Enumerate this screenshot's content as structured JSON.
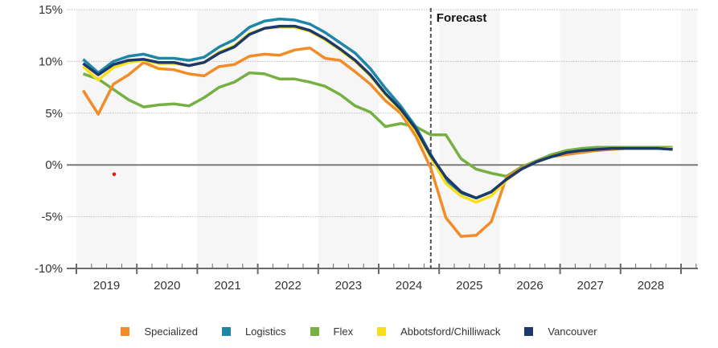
{
  "chart_data": {
    "type": "line",
    "title": "",
    "xlabel": "",
    "ylabel": "",
    "ylim": [
      -10,
      15
    ],
    "yticks": [
      "15%",
      "10%",
      "5%",
      "0%",
      "-5%",
      "-10%"
    ],
    "ytick_values": [
      15,
      10,
      5,
      0,
      -5,
      -10
    ],
    "years": [
      "2019",
      "2020",
      "2021",
      "2022",
      "2023",
      "2024",
      "2025",
      "2026",
      "2027",
      "2028"
    ],
    "frequency": "quarterly",
    "forecast_label": "Forecast",
    "forecast_start": "2024 Q4",
    "grid": true,
    "legend_position": "bottom",
    "series": [
      {
        "name": "Specialized",
        "color": "#F28C28",
        "values": [
          7.2,
          4.9,
          7.8,
          8.7,
          9.9,
          9.3,
          9.2,
          8.8,
          8.6,
          9.5,
          9.7,
          10.5,
          10.7,
          10.6,
          11.1,
          11.3,
          10.3,
          10.1,
          9.0,
          7.8,
          6.2,
          5.0,
          2.8,
          -0.3,
          -5.1,
          -6.9,
          -6.8,
          -5.5,
          -1.2,
          -0.3,
          0.3,
          0.8,
          1.0,
          1.2,
          1.4,
          1.5,
          1.6,
          1.6,
          1.6,
          1.6
        ]
      },
      {
        "name": "Logistics",
        "color": "#1F86A8",
        "values": [
          10.2,
          8.9,
          10.0,
          10.5,
          10.7,
          10.3,
          10.3,
          10.1,
          10.4,
          11.4,
          12.1,
          13.3,
          13.9,
          14.1,
          14.0,
          13.6,
          12.8,
          11.8,
          10.8,
          9.3,
          7.4,
          5.7,
          3.7,
          1.0,
          -1.5,
          -2.7,
          -3.2,
          -2.6,
          -1.4,
          -0.4,
          0.3,
          0.8,
          1.2,
          1.4,
          1.5,
          1.6,
          1.6,
          1.6,
          1.6,
          1.6
        ]
      },
      {
        "name": "Flex",
        "color": "#76B043",
        "values": [
          8.8,
          8.3,
          7.3,
          6.3,
          5.6,
          5.8,
          5.9,
          5.7,
          6.5,
          7.5,
          8.0,
          8.9,
          8.8,
          8.3,
          8.3,
          8.0,
          7.6,
          6.8,
          5.7,
          5.1,
          3.7,
          4.0,
          3.7,
          2.9,
          2.9,
          0.6,
          -0.4,
          -0.8,
          -1.1,
          -0.2,
          0.4,
          1.0,
          1.4,
          1.6,
          1.7,
          1.7,
          1.7,
          1.7,
          1.7,
          1.7
        ]
      },
      {
        "name": "Abbotsford/Chilliwack",
        "color": "#F7E01A",
        "values": [
          9.5,
          8.2,
          9.4,
          9.9,
          10.1,
          9.8,
          9.8,
          9.6,
          9.9,
          10.9,
          11.5,
          12.7,
          13.2,
          13.3,
          13.3,
          12.9,
          12.1,
          11.1,
          10.0,
          8.6,
          6.8,
          5.3,
          3.3,
          0.7,
          -1.8,
          -3.0,
          -3.6,
          -3.0,
          -1.5,
          -0.4,
          0.3,
          0.8,
          1.2,
          1.4,
          1.5,
          1.6,
          1.6,
          1.6,
          1.6,
          1.6
        ]
      },
      {
        "name": "Vancouver",
        "color": "#1B3A6B",
        "values": [
          9.8,
          8.7,
          9.7,
          10.1,
          10.2,
          9.9,
          9.9,
          9.6,
          9.9,
          10.8,
          11.4,
          12.6,
          13.2,
          13.4,
          13.4,
          13.0,
          12.2,
          11.2,
          10.1,
          8.7,
          6.9,
          5.4,
          3.5,
          0.9,
          -1.2,
          -2.6,
          -3.2,
          -2.6,
          -1.4,
          -0.4,
          0.3,
          0.8,
          1.2,
          1.4,
          1.5,
          1.6,
          1.6,
          1.6,
          1.6,
          1.5
        ]
      }
    ],
    "annotations": [
      {
        "type": "marker",
        "color": "#E8161B",
        "x": "2019 Q3",
        "y": -0.9
      }
    ]
  }
}
